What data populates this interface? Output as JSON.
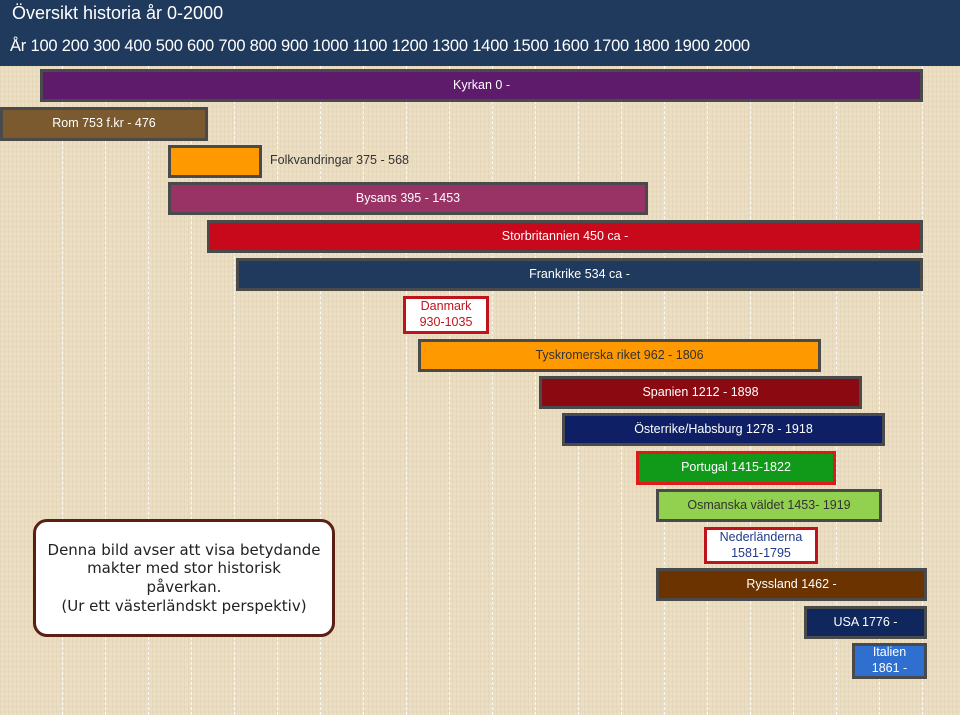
{
  "header": {
    "title": "Översikt historia år 0-2000",
    "years_row": "År 100  200  300  400  500  600  700  800  900 1000 1100 1200 1300 1400 1500 1600 1700 1800 1900 2000"
  },
  "bars": [
    {
      "id": "kyrkan",
      "label": "Kyrkan 0 -",
      "fill": "#5e1a6b",
      "text_color": "#ffffff"
    },
    {
      "id": "rom",
      "label": "Rom 753 f.kr - 476",
      "fill": "#7a5a2e",
      "text_color": "#ffffff"
    },
    {
      "id": "folkvandringar",
      "label": "Folkvandringar 375 - 568",
      "fill": "#ff9900",
      "text_color": "#333333"
    },
    {
      "id": "bysans",
      "label": "Bysans 395 - 1453",
      "fill": "#9a3365",
      "text_color": "#ffffff"
    },
    {
      "id": "storbritannien",
      "label": "Storbritannien 450 ca -",
      "fill": "#c8091c",
      "text_color": "#ffffff"
    },
    {
      "id": "frankrike",
      "label": "Frankrike 534 ca -",
      "fill": "#1f3a5c",
      "text_color": "#ffffff"
    },
    {
      "id": "danmark",
      "label_lines": [
        "Danmark",
        "930-1035"
      ],
      "fill": "#ffffff",
      "text_color": "#c0141c",
      "border": "#c0141c"
    },
    {
      "id": "tyskromerska",
      "label": "Tyskromerska riket 962 - 1806",
      "fill": "#ff9900",
      "text_color": "#333333"
    },
    {
      "id": "spanien",
      "label": "Spanien 1212 - 1898",
      "fill": "#8b0a12",
      "text_color": "#ffffff"
    },
    {
      "id": "osterrike",
      "label": "Österrike/Habsburg 1278 - 1918",
      "fill": "#0f1f66",
      "text_color": "#ffffff"
    },
    {
      "id": "portugal",
      "label": "Portugal 1415-1822",
      "fill": "#119a1a",
      "text_color": "#ffffff",
      "border": "#e01a1a"
    },
    {
      "id": "osmanska",
      "label": "Osmanska väldet 1453- 1919",
      "fill": "#92d050",
      "text_color": "#333333"
    },
    {
      "id": "nederlanderna",
      "label_lines": [
        "Nederländerna",
        "1581-1795"
      ],
      "fill": "#ffffff",
      "text_color": "#1f3a8a",
      "border": "#c0141c"
    },
    {
      "id": "ryssland",
      "label": "Ryssland 1462 -",
      "fill": "#6b3300",
      "text_color": "#ffffff"
    },
    {
      "id": "usa",
      "label": "USA 1776 -",
      "fill": "#10275e",
      "text_color": "#ffffff"
    },
    {
      "id": "italien",
      "label_lines": [
        "Italien",
        "1861 -"
      ],
      "fill": "#2e6fd0",
      "text_color": "#ffffff"
    }
  ],
  "note": {
    "lines": [
      "Denna bild avser att visa betydande",
      "makter med stor historisk",
      "påverkan.",
      "(Ur ett västerländskt perspektiv)"
    ]
  }
}
